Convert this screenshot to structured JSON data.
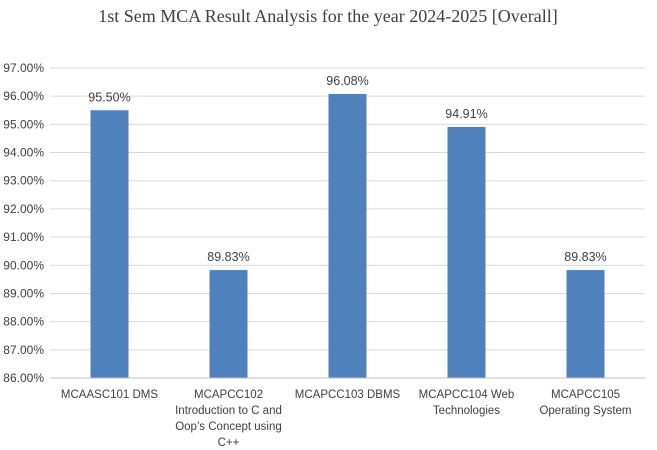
{
  "chart_data": {
    "type": "bar",
    "title": "1st Sem MCA Result Analysis for the year 2024-2025 [Overall]",
    "xlabel": "",
    "ylabel": "",
    "categories": [
      [
        "MCAASC101  DMS"
      ],
      [
        "MCAPCC102",
        "Introduction to C and",
        "Oop’s Concept using",
        "C++"
      ],
      [
        "MCAPCC103 DBMS"
      ],
      [
        "MCAPCC104 Web",
        "Technologies"
      ],
      [
        "MCAPCC105",
        "Operating System"
      ]
    ],
    "values": [
      95.5,
      89.83,
      96.08,
      94.91,
      89.83
    ],
    "data_labels": [
      "95.50%",
      "89.83%",
      "96.08%",
      "94.91%",
      "89.83%"
    ],
    "ylim": [
      86,
      97
    ],
    "ytick_step": 1,
    "ytick_labels": [
      "86.00%",
      "87.00%",
      "88.00%",
      "89.00%",
      "90.00%",
      "91.00%",
      "92.00%",
      "93.00%",
      "94.00%",
      "95.00%",
      "96.00%",
      "97.00%"
    ],
    "bar_color": "#4f81bd",
    "grid": true,
    "legend": "none"
  }
}
